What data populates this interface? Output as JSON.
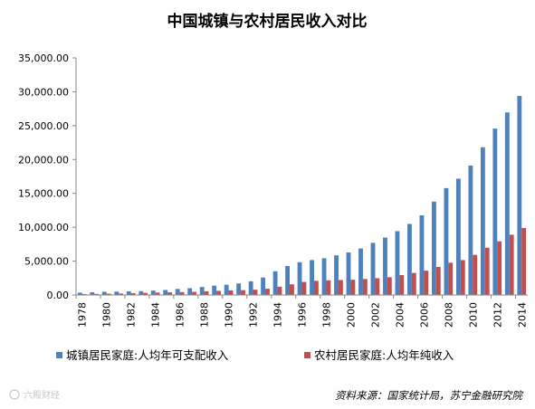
{
  "chart_data": {
    "type": "bar",
    "title": "中国城镇与农村居民收入对比",
    "x": [
      1978,
      1979,
      1980,
      1981,
      1982,
      1983,
      1984,
      1985,
      1986,
      1987,
      1988,
      1989,
      1990,
      1991,
      1992,
      1993,
      1994,
      1995,
      1996,
      1997,
      1998,
      1999,
      2000,
      2001,
      2002,
      2003,
      2004,
      2005,
      2006,
      2007,
      2008,
      2009,
      2010,
      2011,
      2012,
      2013,
      2014
    ],
    "x_tick_labels": [
      "1978",
      "1980",
      "1982",
      "1984",
      "1986",
      "1988",
      "1990",
      "1992",
      "1994",
      "1996",
      "1998",
      "2000",
      "2002",
      "2004",
      "2006",
      "2008",
      "2010",
      "2012",
      "2014"
    ],
    "ylim": [
      0,
      35000
    ],
    "y_ticks": [
      0,
      5000,
      10000,
      15000,
      20000,
      25000,
      30000,
      35000
    ],
    "y_tick_labels": [
      "0.00",
      "5,000.00",
      "10,000.00",
      "15,000.00",
      "20,000.00",
      "25,000.00",
      "30,000.00",
      "35,000.00"
    ],
    "grid": false,
    "legend_position": "bottom",
    "series": [
      {
        "name": "城镇居民家庭:人均年可支配收入",
        "color": "#4f81bd",
        "values": [
          343,
          405,
          478,
          500,
          535,
          565,
          652,
          739,
          900,
          1002,
          1180,
          1374,
          1510,
          1701,
          2027,
          2577,
          3496,
          4283,
          4839,
          5160,
          5425,
          5854,
          6280,
          6860,
          7703,
          8472,
          9422,
          10493,
          11759,
          13786,
          15781,
          17175,
          19109,
          21810,
          24565,
          26955,
          29381
        ]
      },
      {
        "name": "农村居民家庭:人均年纯收入",
        "color": "#c0504d",
        "values": [
          134,
          160,
          191,
          223,
          270,
          310,
          355,
          398,
          424,
          463,
          545,
          602,
          686,
          709,
          784,
          922,
          1221,
          1578,
          1926,
          2090,
          2162,
          2210,
          2253,
          2366,
          2476,
          2622,
          2936,
          3255,
          3587,
          4140,
          4761,
          5153,
          5919,
          6977,
          7917,
          8896,
          9892
        ]
      }
    ]
  },
  "source": "资料来源：国家统计局，苏宁金融研究院",
  "watermark": "六殿财经"
}
